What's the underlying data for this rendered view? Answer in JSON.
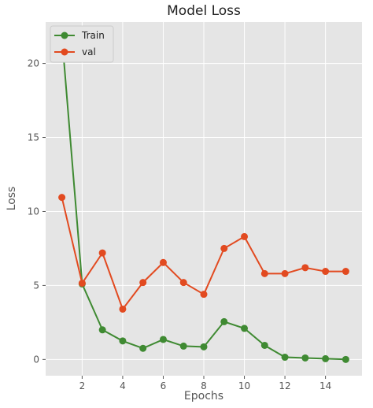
{
  "chart_data": {
    "type": "line",
    "title": "Model Loss",
    "xlabel": "Epochs",
    "ylabel": "Loss",
    "xlim": [
      0.2,
      15.8
    ],
    "ylim": [
      -1.1,
      22.8
    ],
    "xticks": [
      2,
      4,
      6,
      8,
      10,
      12,
      14
    ],
    "yticks": [
      0,
      5,
      10,
      15,
      20
    ],
    "grid": true,
    "legend_position": "top-left",
    "background": "#e5e5e5",
    "x": [
      1,
      2,
      3,
      4,
      5,
      6,
      7,
      8,
      9,
      10,
      11,
      12,
      13,
      14,
      15
    ],
    "series": [
      {
        "name": "Train",
        "color": "#3f8a32",
        "values": [
          21.9,
          5.1,
          2.0,
          1.25,
          0.75,
          1.35,
          0.9,
          0.85,
          2.55,
          2.1,
          0.95,
          0.15,
          0.1,
          0.05,
          0.0
        ]
      },
      {
        "name": "val",
        "color": "#e24a20",
        "values": [
          10.95,
          5.15,
          7.2,
          3.4,
          5.2,
          6.55,
          5.2,
          4.4,
          7.5,
          8.3,
          5.8,
          5.8,
          6.2,
          5.95,
          5.95
        ]
      }
    ]
  }
}
